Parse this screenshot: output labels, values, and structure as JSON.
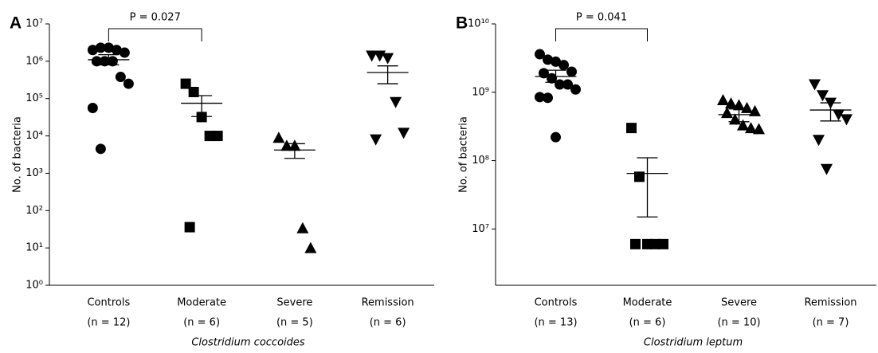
{
  "chart_data": [
    {
      "type": "strip",
      "panel": "A",
      "ylabel": "No. of bacteria",
      "xlabel": "Clostridium coccoides",
      "log_scale": true,
      "color": "#000000",
      "markers": [
        "circle",
        "square",
        "triangle-up",
        "triangle-down"
      ],
      "categories": [
        "Controls",
        "Moderate",
        "Severe",
        "Remission"
      ],
      "category_notes": [
        "(n = 12)",
        "(n = 6)",
        "(n = 5)",
        "(n = 6)"
      ],
      "ylim": [
        1,
        10000000
      ],
      "yticks": [
        {
          "value": 1,
          "label": "10⁰"
        },
        {
          "value": 10,
          "label": "10¹"
        },
        {
          "value": 100,
          "label": "10²"
        },
        {
          "value": 1000,
          "label": "10³"
        },
        {
          "value": 10000,
          "label": "10⁴"
        },
        {
          "value": 100000,
          "label": "10⁵"
        },
        {
          "value": 1000000,
          "label": "10⁶"
        },
        {
          "value": 10000000,
          "label": "10⁷"
        }
      ],
      "values": [
        [
          2000000,
          2300000,
          2300000,
          2000000,
          1700000,
          1000000,
          1000000,
          1000000,
          380000,
          250000,
          56000,
          4500
        ],
        [
          250000,
          150000,
          32000,
          10000,
          10000,
          36
        ],
        [
          9000,
          5500,
          5500,
          34,
          10
        ],
        [
          1400000,
          1400000,
          1200000,
          80000,
          12000,
          8000
        ]
      ],
      "mean": [
        1100000,
        75000,
        4200,
        500000
      ],
      "sem_upper": [
        1500000,
        120000,
        6200,
        750000
      ],
      "sem_lower": [
        800000,
        33000,
        2500,
        250000
      ],
      "annotation": {
        "text": "P = 0.027",
        "between": [
          0,
          1
        ]
      }
    },
    {
      "type": "strip",
      "panel": "B",
      "ylabel": "No. of bacteria",
      "xlabel": "Clostridium leptum",
      "log_scale": true,
      "color": "#000000",
      "markers": [
        "circle",
        "square",
        "triangle-up",
        "triangle-down"
      ],
      "categories": [
        "Controls",
        "Moderate",
        "Severe",
        "Remission"
      ],
      "category_notes": [
        "(n = 13)",
        "(n = 6)",
        "(n = 10)",
        "(n = 7)"
      ],
      "ylim": [
        1500000,
        10000000000
      ],
      "yticks": [
        {
          "value": 10000000,
          "label": "10⁷"
        },
        {
          "value": 100000000,
          "label": "10⁸"
        },
        {
          "value": 1000000000,
          "label": "10⁹"
        },
        {
          "value": 10000000000,
          "label": "10¹⁰"
        }
      ],
      "values": [
        [
          3600000000,
          3000000000,
          2800000000,
          2500000000,
          2000000000,
          1900000000,
          1600000000,
          1300000000,
          1300000000,
          1100000000,
          850000000,
          830000000,
          220000000
        ],
        [
          300000000,
          58000000,
          6000000,
          6000000,
          6000000,
          6000000
        ],
        [
          770000000,
          690000000,
          650000000,
          590000000,
          530000000,
          500000000,
          400000000,
          330000000,
          300000000,
          290000000
        ],
        [
          1300000000,
          900000000,
          700000000,
          470000000,
          400000000,
          200000000,
          75000000
        ]
      ],
      "mean": [
        1700000000,
        65000000,
        470000000,
        550000000
      ],
      "sem_upper": [
        2100000000,
        110000000,
        570000000,
        700000000
      ],
      "sem_lower": [
        1400000000,
        15000000,
        370000000,
        380000000
      ],
      "annotation": {
        "text": "P = 0.041",
        "between": [
          0,
          1
        ]
      }
    }
  ]
}
